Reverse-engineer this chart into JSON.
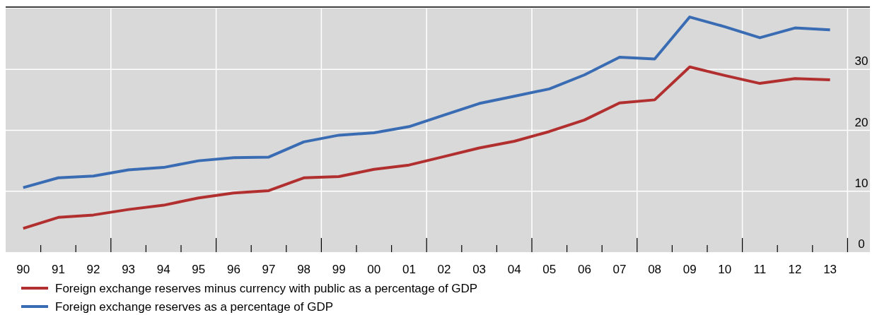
{
  "chart_data": {
    "type": "line",
    "categories": [
      "90",
      "91",
      "92",
      "93",
      "94",
      "95",
      "96",
      "97",
      "98",
      "99",
      "00",
      "01",
      "02",
      "03",
      "04",
      "05",
      "06",
      "07",
      "08",
      "09",
      "10",
      "11",
      "12",
      "13"
    ],
    "series": [
      {
        "name": "Foreign exchange reserves minus currency with public as a percentage of GDP",
        "color": "#b22f2f",
        "values": [
          3.9,
          5.7,
          6.1,
          7.0,
          7.7,
          8.9,
          9.7,
          10.1,
          12.2,
          12.4,
          13.6,
          14.3,
          15.7,
          17.1,
          18.2,
          19.8,
          21.7,
          24.5,
          25.0,
          30.4,
          29.0,
          27.7,
          28.5,
          28.3
        ]
      },
      {
        "name": "Foreign exchange reserves as a percentage of GDP",
        "color": "#3a6cb4",
        "values": [
          10.6,
          12.2,
          12.5,
          13.5,
          13.9,
          15.0,
          15.5,
          15.6,
          18.1,
          19.2,
          19.6,
          20.6,
          22.5,
          24.4,
          25.6,
          26.8,
          29.1,
          32.0,
          31.7,
          38.6,
          37.0,
          35.2,
          36.8,
          36.5
        ]
      }
    ],
    "ylim": [
      0,
      40
    ],
    "yticks": [
      0,
      10,
      20,
      30
    ],
    "grid": true,
    "legend": "bottom",
    "marker": "none",
    "line_style": "solid"
  }
}
